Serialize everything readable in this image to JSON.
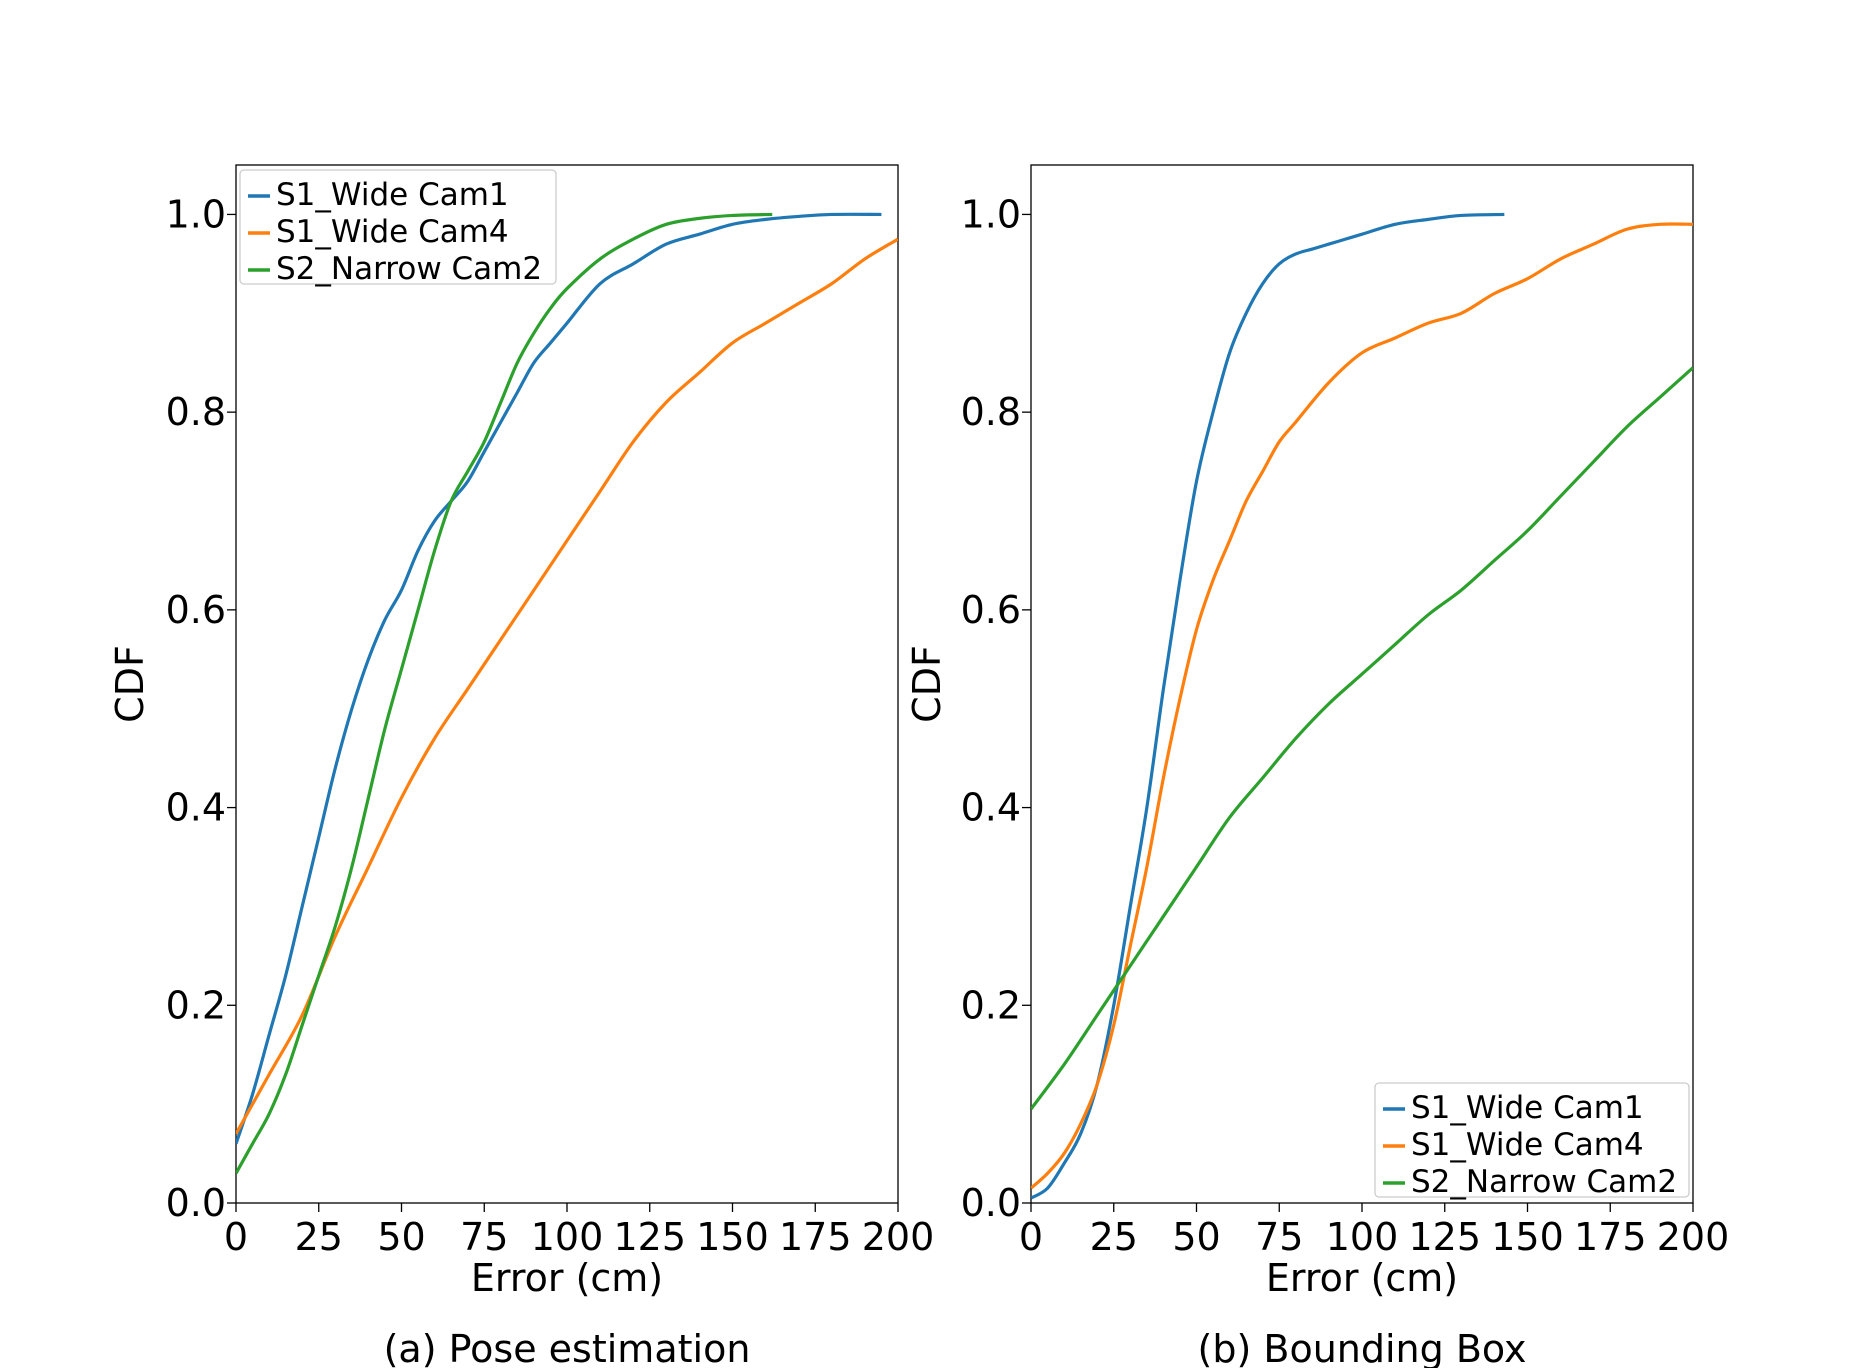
{
  "chart_data": [
    {
      "type": "line",
      "caption": "(a) Pose estimation",
      "xlabel": "Error (cm)",
      "ylabel": "CDF",
      "xlim": [
        0,
        200
      ],
      "ylim": [
        0,
        1.05
      ],
      "xticks": [
        "0",
        "25",
        "50",
        "75",
        "100",
        "125",
        "150",
        "175",
        "200"
      ],
      "yticks": [
        "0.0",
        "0.2",
        "0.4",
        "0.6",
        "0.8",
        "1.0"
      ],
      "legend_position": "top-left",
      "grid": false,
      "series": [
        {
          "name": "S1_Wide Cam1",
          "color": "#1f77b4",
          "x": [
            0,
            5,
            10,
            15,
            20,
            25,
            30,
            35,
            40,
            45,
            50,
            55,
            60,
            65,
            70,
            75,
            80,
            85,
            90,
            95,
            100,
            110,
            120,
            130,
            140,
            150,
            160,
            170,
            180,
            195
          ],
          "y": [
            0.06,
            0.11,
            0.17,
            0.23,
            0.3,
            0.37,
            0.44,
            0.5,
            0.55,
            0.59,
            0.62,
            0.66,
            0.69,
            0.71,
            0.73,
            0.76,
            0.79,
            0.82,
            0.85,
            0.87,
            0.89,
            0.93,
            0.95,
            0.97,
            0.98,
            0.99,
            0.995,
            0.998,
            1.0,
            1.0
          ]
        },
        {
          "name": "S1_Wide Cam4",
          "color": "#ff7f0e",
          "x": [
            0,
            10,
            20,
            30,
            40,
            50,
            60,
            70,
            80,
            90,
            100,
            110,
            120,
            130,
            140,
            150,
            160,
            170,
            180,
            190,
            200
          ],
          "y": [
            0.07,
            0.13,
            0.19,
            0.27,
            0.34,
            0.41,
            0.47,
            0.52,
            0.57,
            0.62,
            0.67,
            0.72,
            0.77,
            0.81,
            0.84,
            0.87,
            0.89,
            0.91,
            0.93,
            0.955,
            0.975
          ]
        },
        {
          "name": "S2_Narrow Cam2",
          "color": "#2ca02c",
          "x": [
            0,
            5,
            10,
            15,
            20,
            25,
            30,
            35,
            40,
            45,
            50,
            55,
            60,
            65,
            70,
            75,
            80,
            85,
            90,
            95,
            100,
            110,
            120,
            130,
            140,
            150,
            162
          ],
          "y": [
            0.03,
            0.06,
            0.09,
            0.13,
            0.18,
            0.23,
            0.28,
            0.34,
            0.41,
            0.48,
            0.54,
            0.6,
            0.66,
            0.71,
            0.74,
            0.77,
            0.81,
            0.85,
            0.88,
            0.905,
            0.925,
            0.955,
            0.975,
            0.99,
            0.996,
            0.999,
            1.0
          ]
        }
      ]
    },
    {
      "type": "line",
      "caption": "(b) Bounding Box",
      "xlabel": "Error (cm)",
      "ylabel": "CDF",
      "xlim": [
        0,
        200
      ],
      "ylim": [
        0,
        1.05
      ],
      "xticks": [
        "0",
        "25",
        "50",
        "75",
        "100",
        "125",
        "150",
        "175",
        "200"
      ],
      "yticks": [
        "0.0",
        "0.2",
        "0.4",
        "0.6",
        "0.8",
        "1.0"
      ],
      "legend_position": "bottom-right",
      "grid": false,
      "series": [
        {
          "name": "S1_Wide Cam1",
          "color": "#1f77b4",
          "x": [
            0,
            5,
            10,
            15,
            20,
            25,
            30,
            35,
            40,
            45,
            50,
            55,
            60,
            65,
            70,
            75,
            80,
            85,
            90,
            95,
            100,
            110,
            120,
            130,
            143
          ],
          "y": [
            0.005,
            0.015,
            0.04,
            0.07,
            0.12,
            0.2,
            0.3,
            0.4,
            0.52,
            0.63,
            0.73,
            0.8,
            0.86,
            0.9,
            0.93,
            0.95,
            0.96,
            0.965,
            0.97,
            0.975,
            0.98,
            0.99,
            0.995,
            0.999,
            1.0
          ]
        },
        {
          "name": "S1_Wide Cam4",
          "color": "#ff7f0e",
          "x": [
            0,
            5,
            10,
            15,
            20,
            25,
            30,
            35,
            40,
            45,
            50,
            55,
            60,
            65,
            70,
            75,
            80,
            90,
            100,
            110,
            120,
            130,
            140,
            150,
            160,
            170,
            180,
            190,
            200
          ],
          "y": [
            0.015,
            0.03,
            0.05,
            0.08,
            0.12,
            0.18,
            0.26,
            0.34,
            0.43,
            0.51,
            0.58,
            0.63,
            0.67,
            0.71,
            0.74,
            0.77,
            0.79,
            0.83,
            0.86,
            0.875,
            0.89,
            0.9,
            0.92,
            0.935,
            0.955,
            0.97,
            0.985,
            0.99,
            0.99
          ]
        },
        {
          "name": "S2_Narrow Cam2",
          "color": "#2ca02c",
          "x": [
            0,
            10,
            20,
            30,
            40,
            50,
            60,
            70,
            80,
            90,
            100,
            110,
            120,
            130,
            140,
            150,
            160,
            170,
            180,
            190,
            200
          ],
          "y": [
            0.095,
            0.14,
            0.19,
            0.24,
            0.29,
            0.34,
            0.39,
            0.43,
            0.47,
            0.505,
            0.535,
            0.565,
            0.595,
            0.62,
            0.65,
            0.68,
            0.715,
            0.75,
            0.785,
            0.815,
            0.845
          ]
        }
      ]
    }
  ]
}
